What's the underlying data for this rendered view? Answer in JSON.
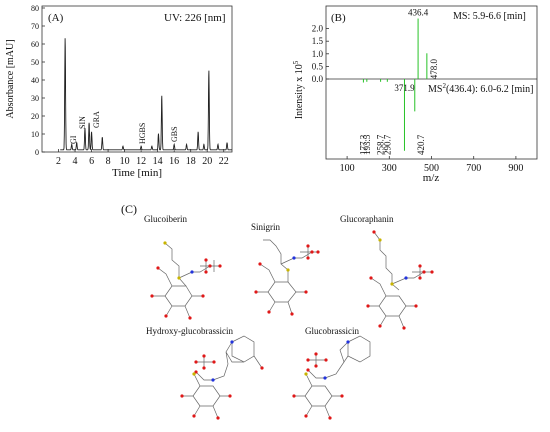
{
  "panel_a": {
    "tag": "(A)",
    "uv_label": "UV: 226 [nm]",
    "annotations": [
      "GI",
      "SIN",
      "GRA",
      "HGBS",
      "GBS"
    ]
  },
  "panel_b": {
    "tag": "(B)",
    "ms1_label": "MS: 5.9-6.6 [min]",
    "ms2_label_prefix": "MS",
    "ms2_label_sup": "2",
    "ms2_label_suffix": "(436.4): 6.0-6.2 [min]",
    "ylabel_base": "Intensity x 10",
    "ylabel_sup": "5"
  },
  "panel_c": {
    "tag": "(C)",
    "molecules": [
      "Glucoiberin",
      "Sinigrin",
      "Glucoraphanin",
      "Hydroxy-glucobrassicin",
      "Glucobrassicin"
    ]
  },
  "colors": {
    "trace": "#222222",
    "ms2_trace": "#27c227",
    "atom_O": "#e01818",
    "atom_N": "#2233dd",
    "atom_S": "#c8b400"
  },
  "chart_data": [
    {
      "type": "line",
      "xlabel": "Time [min]",
      "ylabel": "Absorbance [mAU]",
      "xlim": [
        0,
        23
      ],
      "x_ticks": [
        2,
        4,
        6,
        8,
        10,
        12,
        14,
        16,
        18,
        20,
        22
      ],
      "y_tick_labels": [
        "0",
        "10",
        "20",
        "30",
        "40",
        "50",
        "60",
        "70",
        "80"
      ],
      "ylim": [
        0,
        80
      ],
      "peaks": [
        {
          "t": 2.8,
          "h": 62
        },
        {
          "t": 3.6,
          "h": 3
        },
        {
          "t": 4.2,
          "h": 4
        },
        {
          "t": 5.2,
          "h": 12
        },
        {
          "t": 5.7,
          "h": 15
        },
        {
          "t": 6.0,
          "h": 10
        },
        {
          "t": 7.3,
          "h": 7
        },
        {
          "t": 9.8,
          "h": 2
        },
        {
          "t": 12.0,
          "h": 2
        },
        {
          "t": 13.3,
          "h": 2
        },
        {
          "t": 14.1,
          "h": 9
        },
        {
          "t": 14.5,
          "h": 30
        },
        {
          "t": 16.0,
          "h": 3
        },
        {
          "t": 17.5,
          "h": 3
        },
        {
          "t": 18.9,
          "h": 10
        },
        {
          "t": 19.6,
          "h": 3
        },
        {
          "t": 20.2,
          "h": 44
        },
        {
          "t": 21.3,
          "h": 3
        },
        {
          "t": 22.4,
          "h": 4
        }
      ]
    },
    {
      "type": "bar",
      "xlabel": "m/z",
      "x_ticks": [
        100,
        300,
        500,
        700,
        900
      ],
      "xlim": [
        0,
        1000
      ],
      "y_tick_labels": [
        "0.0",
        "0.5",
        "1.0",
        "1.5",
        "2.0"
      ],
      "ylim": [
        0,
        2.5
      ],
      "ms1_peaks": [
        {
          "mz": 436.4,
          "label": "436.4",
          "value": 2.4
        },
        {
          "mz": 478.0,
          "label": "478.0",
          "value": 1.02
        }
      ],
      "ms2_ylim": [
        0,
        5.4
      ],
      "ms2_peaks": [
        {
          "mz": 371.9,
          "label": "371.9",
          "value": 5.1
        },
        {
          "mz": 420.7,
          "label": "420.7",
          "value": 2.3
        },
        {
          "mz": 177.3,
          "label": "177.3",
          "value": 0.25
        },
        {
          "mz": 193.5,
          "label": "193.5",
          "value": 0.2
        },
        {
          "mz": 258.7,
          "label": "258.7",
          "value": 0.2
        },
        {
          "mz": 290.7,
          "label": "290.7",
          "value": 0.2
        }
      ]
    }
  ]
}
